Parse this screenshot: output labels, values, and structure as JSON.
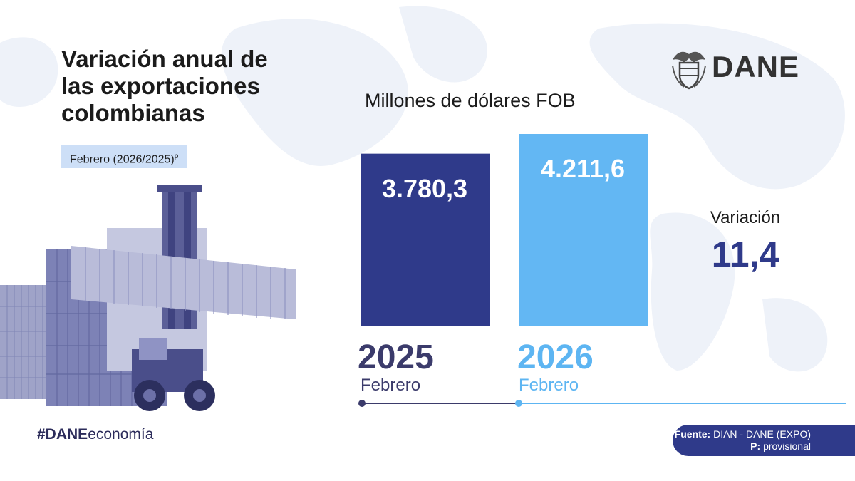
{
  "header": {
    "title_lines": [
      "Variación anual de",
      "las exportaciones",
      "colombianas"
    ],
    "period": "Febrero (2026/2025)",
    "period_sup": "p"
  },
  "logo": {
    "text": "DANE"
  },
  "colors": {
    "bar_2025": "#2f3a8a",
    "bar_2026": "#63b7f3",
    "year_2025_text": "#3b3b6b",
    "year_2026_text": "#5db5f2",
    "accent": "#2f3a8a"
  },
  "chart_data": {
    "type": "bar",
    "title": "Millones de dólares FOB",
    "categories": [
      "2025",
      "2026"
    ],
    "category_sublabels": [
      "Febrero",
      "Febrero"
    ],
    "values": [
      3780.3,
      4211.6
    ],
    "value_labels": [
      "3.780,3",
      "4.211,6"
    ],
    "ylim": [
      0,
      5000
    ],
    "grid": false,
    "legend": "none"
  },
  "variation": {
    "label": "Variación",
    "value": "11,4"
  },
  "footer": {
    "hashtag_bold": "#DANE",
    "hashtag_rest": "economía",
    "source_label": "Fuente:",
    "source_text": "DIAN - DANE (EXPO)",
    "note_label": "P:",
    "note_text": "provisional"
  }
}
